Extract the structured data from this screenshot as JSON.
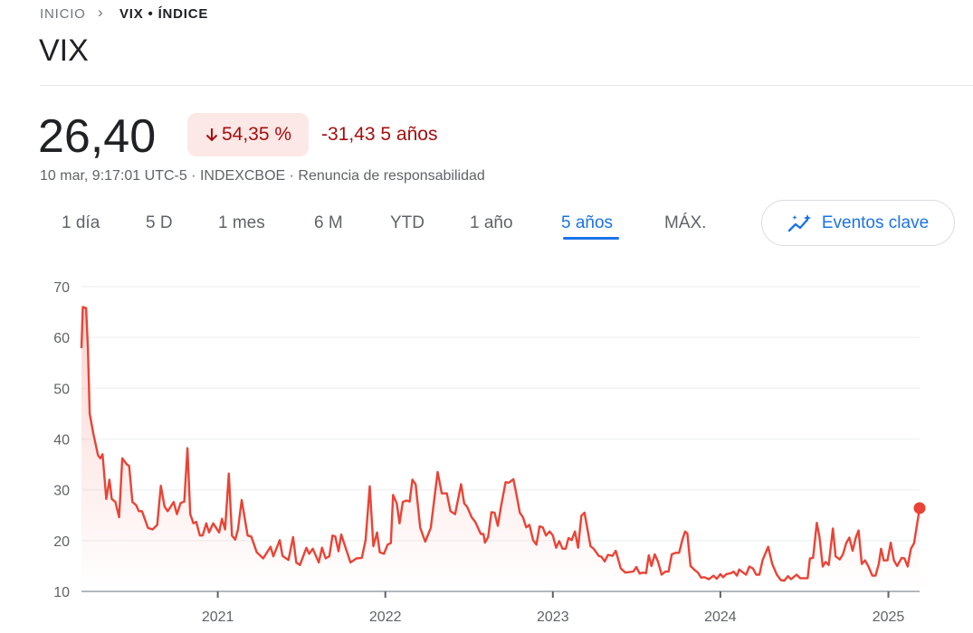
{
  "breadcrumb": {
    "home": "INICIO",
    "separator": "›",
    "current": "VIX • ÍNDICE"
  },
  "title": "VIX",
  "quote": {
    "price": "26,40",
    "change_percent": "54,35 %",
    "change_direction": "down",
    "change_abs": "-31,43",
    "change_period": "5 años",
    "meta": "10 mar, 9:17:01 UTC-5 · INDEXCBOE · Renuncia de responsabilidad"
  },
  "tabs": [
    {
      "label": "1 día"
    },
    {
      "label": "5 D"
    },
    {
      "label": "1 mes"
    },
    {
      "label": "6 M"
    },
    {
      "label": "YTD"
    },
    {
      "label": "1 año"
    },
    {
      "label": "5 años",
      "active": true
    },
    {
      "label": "MÁX."
    }
  ],
  "events_button": {
    "label": "Eventos clave",
    "icon": "sparkle-chart-icon"
  },
  "colors": {
    "down": "#a50e0e",
    "down_bg": "#fce8e6",
    "line": "#ea4335",
    "accent": "#1a73e8"
  },
  "chart_data": {
    "type": "line",
    "title": "",
    "xlabel": "",
    "ylabel": "",
    "ylim": [
      10,
      70
    ],
    "yticks": [
      "10",
      "20",
      "30",
      "40",
      "50",
      "60",
      "70"
    ],
    "xticks": [
      {
        "date": "2021-01-01",
        "label": "2021"
      },
      {
        "date": "2022-01-01",
        "label": "2022"
      },
      {
        "date": "2023-01-01",
        "label": "2023"
      },
      {
        "date": "2024-01-01",
        "label": "2024"
      },
      {
        "date": "2025-01-01",
        "label": "2025"
      }
    ],
    "xlim": [
      "2020-03-10",
      "2025-03-10"
    ],
    "grid": true,
    "last_point_marker": true,
    "series": [
      {
        "points": [
          [
            "2020-03-10",
            57.9
          ],
          [
            "2020-03-13",
            66
          ],
          [
            "2020-03-20",
            65.8
          ],
          [
            "2020-03-24",
            58
          ],
          [
            "2020-03-28",
            45
          ],
          [
            "2020-04-05",
            41
          ],
          [
            "2020-04-15",
            36.8
          ],
          [
            "2020-04-20",
            36.2
          ],
          [
            "2020-04-25",
            37
          ],
          [
            "2020-05-03",
            28.2
          ],
          [
            "2020-05-10",
            32
          ],
          [
            "2020-05-15",
            28.2
          ],
          [
            "2020-05-23",
            27.6
          ],
          [
            "2020-05-31",
            24.6
          ],
          [
            "2020-06-07",
            36.2
          ],
          [
            "2020-06-17",
            35
          ],
          [
            "2020-06-22",
            34.7
          ],
          [
            "2020-06-29",
            27.6
          ],
          [
            "2020-07-07",
            27
          ],
          [
            "2020-07-13",
            25.8
          ],
          [
            "2020-07-20",
            25.8
          ],
          [
            "2020-08-02",
            22.5
          ],
          [
            "2020-08-12",
            22.2
          ],
          [
            "2020-08-22",
            23.1
          ],
          [
            "2020-08-30",
            30.8
          ],
          [
            "2020-09-07",
            26.7
          ],
          [
            "2020-09-14",
            25.8
          ],
          [
            "2020-09-27",
            27.6
          ],
          [
            "2020-10-04",
            25.2
          ],
          [
            "2020-10-12",
            27.4
          ],
          [
            "2020-10-20",
            27.7
          ],
          [
            "2020-10-27",
            38.2
          ],
          [
            "2020-11-02",
            25.2
          ],
          [
            "2020-11-09",
            23.4
          ],
          [
            "2020-11-15",
            23.7
          ],
          [
            "2020-11-23",
            21
          ],
          [
            "2020-11-29",
            21
          ],
          [
            "2020-12-07",
            23.4
          ],
          [
            "2020-12-13",
            21.6
          ],
          [
            "2020-12-22",
            23.4
          ],
          [
            "2021-01-04",
            21.6
          ],
          [
            "2021-01-10",
            24.3
          ],
          [
            "2021-01-17",
            22.2
          ],
          [
            "2021-01-25",
            33.2
          ],
          [
            "2021-02-01",
            21
          ],
          [
            "2021-02-08",
            20.2
          ],
          [
            "2021-02-14",
            22.2
          ],
          [
            "2021-02-22",
            28
          ],
          [
            "2021-03-07",
            21
          ],
          [
            "2021-03-15",
            20.8
          ],
          [
            "2021-03-27",
            17.7
          ],
          [
            "2021-04-10",
            16.5
          ],
          [
            "2021-04-26",
            18.8
          ],
          [
            "2021-05-02",
            16.9
          ],
          [
            "2021-05-16",
            20.1
          ],
          [
            "2021-05-22",
            17
          ],
          [
            "2021-06-04",
            16.2
          ],
          [
            "2021-06-14",
            20.7
          ],
          [
            "2021-06-21",
            15.7
          ],
          [
            "2021-06-29",
            15.2
          ],
          [
            "2021-07-13",
            18.6
          ],
          [
            "2021-07-19",
            17.4
          ],
          [
            "2021-07-27",
            18.4
          ],
          [
            "2021-08-09",
            15.7
          ],
          [
            "2021-08-16",
            18.6
          ],
          [
            "2021-08-24",
            16.5
          ],
          [
            "2021-09-01",
            16.9
          ],
          [
            "2021-09-08",
            21
          ],
          [
            "2021-09-14",
            20.8
          ],
          [
            "2021-09-21",
            17.9
          ],
          [
            "2021-09-27",
            21.2
          ],
          [
            "2021-10-17",
            15.7
          ],
          [
            "2021-10-30",
            16.5
          ],
          [
            "2021-11-11",
            16.6
          ],
          [
            "2021-11-19",
            20.1
          ],
          [
            "2021-11-28",
            30.7
          ],
          [
            "2021-12-06",
            18.9
          ],
          [
            "2021-12-14",
            21.6
          ],
          [
            "2021-12-20",
            17.7
          ],
          [
            "2021-12-29",
            17.4
          ],
          [
            "2022-01-06",
            19.2
          ],
          [
            "2022-01-13",
            19.5
          ],
          [
            "2022-01-18",
            29
          ],
          [
            "2022-01-26",
            27.3
          ],
          [
            "2022-02-01",
            23.4
          ],
          [
            "2022-02-08",
            27.6
          ],
          [
            "2022-02-16",
            27.9
          ],
          [
            "2022-02-23",
            27.7
          ],
          [
            "2022-03-01",
            32
          ],
          [
            "2022-03-08",
            31.1
          ],
          [
            "2022-03-18",
            22.5
          ],
          [
            "2022-03-29",
            19.8
          ],
          [
            "2022-04-10",
            22.5
          ],
          [
            "2022-04-25",
            33.5
          ],
          [
            "2022-05-04",
            29.3
          ],
          [
            "2022-05-15",
            29.3
          ],
          [
            "2022-05-23",
            25.8
          ],
          [
            "2022-06-02",
            25.2
          ],
          [
            "2022-06-15",
            31.1
          ],
          [
            "2022-06-22",
            27.3
          ],
          [
            "2022-06-28",
            26.7
          ],
          [
            "2022-07-08",
            24.6
          ],
          [
            "2022-07-16",
            23.7
          ],
          [
            "2022-07-28",
            21.3
          ],
          [
            "2022-08-03",
            21.3
          ],
          [
            "2022-08-06",
            19.6
          ],
          [
            "2022-08-13",
            20.7
          ],
          [
            "2022-08-20",
            25.6
          ],
          [
            "2022-08-27",
            25.5
          ],
          [
            "2022-09-03",
            22.9
          ],
          [
            "2022-09-10",
            26.7
          ],
          [
            "2022-09-20",
            31.5
          ],
          [
            "2022-09-27",
            31.4
          ],
          [
            "2022-10-07",
            32.1
          ],
          [
            "2022-10-14",
            29
          ],
          [
            "2022-10-21",
            25.5
          ],
          [
            "2022-10-28",
            24.6
          ],
          [
            "2022-11-04",
            22.6
          ],
          [
            "2022-11-11",
            23.1
          ],
          [
            "2022-11-19",
            20.1
          ],
          [
            "2022-11-26",
            19.2
          ],
          [
            "2022-12-03",
            22.8
          ],
          [
            "2022-12-10",
            22.6
          ],
          [
            "2022-12-17",
            21
          ],
          [
            "2022-12-25",
            21.8
          ],
          [
            "2023-01-01",
            21
          ],
          [
            "2023-01-08",
            18.6
          ],
          [
            "2023-01-15",
            19.9
          ],
          [
            "2023-01-22",
            18.4
          ],
          [
            "2023-01-29",
            18.4
          ],
          [
            "2023-02-04",
            20.5
          ],
          [
            "2023-02-11",
            20.1
          ],
          [
            "2023-02-18",
            21.8
          ],
          [
            "2023-02-25",
            18.6
          ],
          [
            "2023-03-04",
            24.9
          ],
          [
            "2023-03-11",
            25.5
          ],
          [
            "2023-03-24",
            18.9
          ],
          [
            "2023-03-31",
            18.4
          ],
          [
            "2023-04-11",
            17
          ],
          [
            "2023-04-17",
            16.8
          ],
          [
            "2023-04-24",
            15.9
          ],
          [
            "2023-05-01",
            17.2
          ],
          [
            "2023-05-11",
            17
          ],
          [
            "2023-05-18",
            18
          ],
          [
            "2023-05-29",
            14.5
          ],
          [
            "2023-06-08",
            13.7
          ],
          [
            "2023-06-25",
            13.9
          ],
          [
            "2023-07-02",
            14.8
          ],
          [
            "2023-07-09",
            13.5
          ],
          [
            "2023-07-16",
            13.7
          ],
          [
            "2023-07-23",
            13.6
          ],
          [
            "2023-07-29",
            17.1
          ],
          [
            "2023-08-04",
            15
          ],
          [
            "2023-08-11",
            17.3
          ],
          [
            "2023-08-18",
            15.9
          ],
          [
            "2023-08-26",
            13.3
          ],
          [
            "2023-09-03",
            13.9
          ],
          [
            "2023-09-10",
            13.9
          ],
          [
            "2023-09-17",
            17.3
          ],
          [
            "2023-09-26",
            17.6
          ],
          [
            "2023-10-03",
            17.6
          ],
          [
            "2023-10-10",
            20.1
          ],
          [
            "2023-10-16",
            21.8
          ],
          [
            "2023-10-21",
            21.4
          ],
          [
            "2023-10-28",
            15
          ],
          [
            "2023-11-06",
            14.2
          ],
          [
            "2023-11-13",
            13.7
          ],
          [
            "2023-11-20",
            12.7
          ],
          [
            "2023-11-27",
            12.8
          ],
          [
            "2023-12-07",
            12.4
          ],
          [
            "2023-12-17",
            13.1
          ],
          [
            "2023-12-24",
            12.5
          ],
          [
            "2024-01-01",
            13.4
          ],
          [
            "2024-01-07",
            12.8
          ],
          [
            "2024-01-14",
            13.4
          ],
          [
            "2024-01-24",
            13.6
          ],
          [
            "2024-01-30",
            13.9
          ],
          [
            "2024-02-06",
            13.1
          ],
          [
            "2024-02-11",
            14.3
          ],
          [
            "2024-02-21",
            13.6
          ],
          [
            "2024-02-26",
            13.3
          ],
          [
            "2024-03-04",
            14.9
          ],
          [
            "2024-03-12",
            14.5
          ],
          [
            "2024-03-19",
            13.3
          ],
          [
            "2024-03-26",
            13.3
          ],
          [
            "2024-04-02",
            16.2
          ],
          [
            "2024-04-14",
            18.8
          ],
          [
            "2024-04-23",
            15.4
          ],
          [
            "2024-05-03",
            13.3
          ],
          [
            "2024-05-12",
            12.2
          ],
          [
            "2024-05-19",
            12.1
          ],
          [
            "2024-05-27",
            13
          ],
          [
            "2024-06-03",
            12.4
          ],
          [
            "2024-06-15",
            13.3
          ],
          [
            "2024-06-23",
            12.6
          ],
          [
            "2024-07-09",
            12.6
          ],
          [
            "2024-07-14",
            16.5
          ],
          [
            "2024-07-21",
            16.6
          ],
          [
            "2024-07-29",
            23.5
          ],
          [
            "2024-08-04",
            20.7
          ],
          [
            "2024-08-11",
            14.9
          ],
          [
            "2024-08-17",
            15.8
          ],
          [
            "2024-08-24",
            15.2
          ],
          [
            "2024-09-02",
            22.4
          ],
          [
            "2024-09-08",
            16.9
          ],
          [
            "2024-09-17",
            16.3
          ],
          [
            "2024-09-24",
            17.3
          ],
          [
            "2024-10-01",
            19.5
          ],
          [
            "2024-10-08",
            20.6
          ],
          [
            "2024-10-15",
            18
          ],
          [
            "2024-10-22",
            20.6
          ],
          [
            "2024-10-28",
            22
          ],
          [
            "2024-11-04",
            15.4
          ],
          [
            "2024-11-11",
            16.1
          ],
          [
            "2024-11-18",
            15
          ],
          [
            "2024-11-27",
            13.1
          ],
          [
            "2024-12-04",
            13.1
          ],
          [
            "2024-12-11",
            15.4
          ],
          [
            "2024-12-16",
            18.4
          ],
          [
            "2024-12-22",
            16.1
          ],
          [
            "2024-12-30",
            16.1
          ],
          [
            "2025-01-06",
            19.6
          ],
          [
            "2025-01-13",
            16.1
          ],
          [
            "2025-01-20",
            15
          ],
          [
            "2025-01-30",
            16.6
          ],
          [
            "2025-02-05",
            16.5
          ],
          [
            "2025-02-12",
            14.9
          ],
          [
            "2025-02-19",
            18.4
          ],
          [
            "2025-02-26",
            19.5
          ],
          [
            "2025-03-10",
            26.4
          ]
        ]
      }
    ]
  }
}
